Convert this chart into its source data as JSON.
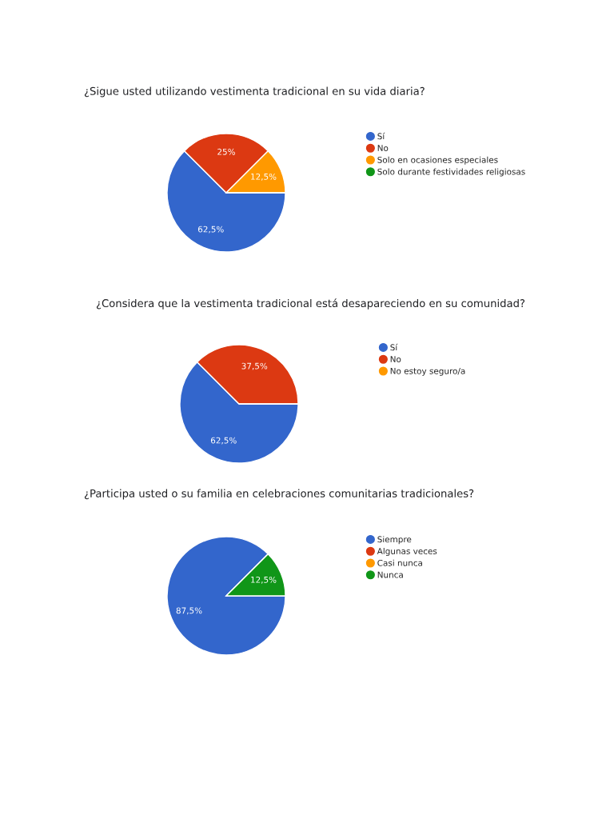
{
  "chart_data": [
    {
      "type": "pie",
      "title": "¿Sigue usted utilizando vestimenta tradicional en su vida diaria?",
      "categories": [
        "Sí",
        "No",
        "Solo en ocasiones especiales",
        "Solo durante festividades religiosas"
      ],
      "values": [
        62.5,
        25,
        12.5,
        0
      ],
      "value_labels": [
        "62,5%",
        "25%",
        "12,5%",
        null
      ],
      "colors": [
        "#3366cc",
        "#dc3912",
        "#ff9900",
        "#109618"
      ],
      "legend": "right"
    },
    {
      "type": "pie",
      "title": "¿Considera que la vestimenta tradicional está desapareciendo en su comunidad?",
      "categories": [
        "Sí",
        "No",
        "No estoy seguro/a"
      ],
      "values": [
        62.5,
        37.5,
        0
      ],
      "value_labels": [
        "62,5%",
        "37,5%",
        null
      ],
      "colors": [
        "#3366cc",
        "#dc3912",
        "#ff9900"
      ],
      "legend": "right"
    },
    {
      "type": "pie",
      "title": "¿Participa usted o su familia en celebraciones comunitarias tradicionales?",
      "categories": [
        "Siempre",
        "Algunas veces",
        "Casi nunca",
        "Nunca"
      ],
      "values": [
        87.5,
        0,
        0,
        12.5
      ],
      "value_labels": [
        "87,5%",
        null,
        null,
        "12,5%"
      ],
      "colors": [
        "#3366cc",
        "#dc3912",
        "#ff9900",
        "#109618"
      ],
      "legend": "right"
    }
  ]
}
